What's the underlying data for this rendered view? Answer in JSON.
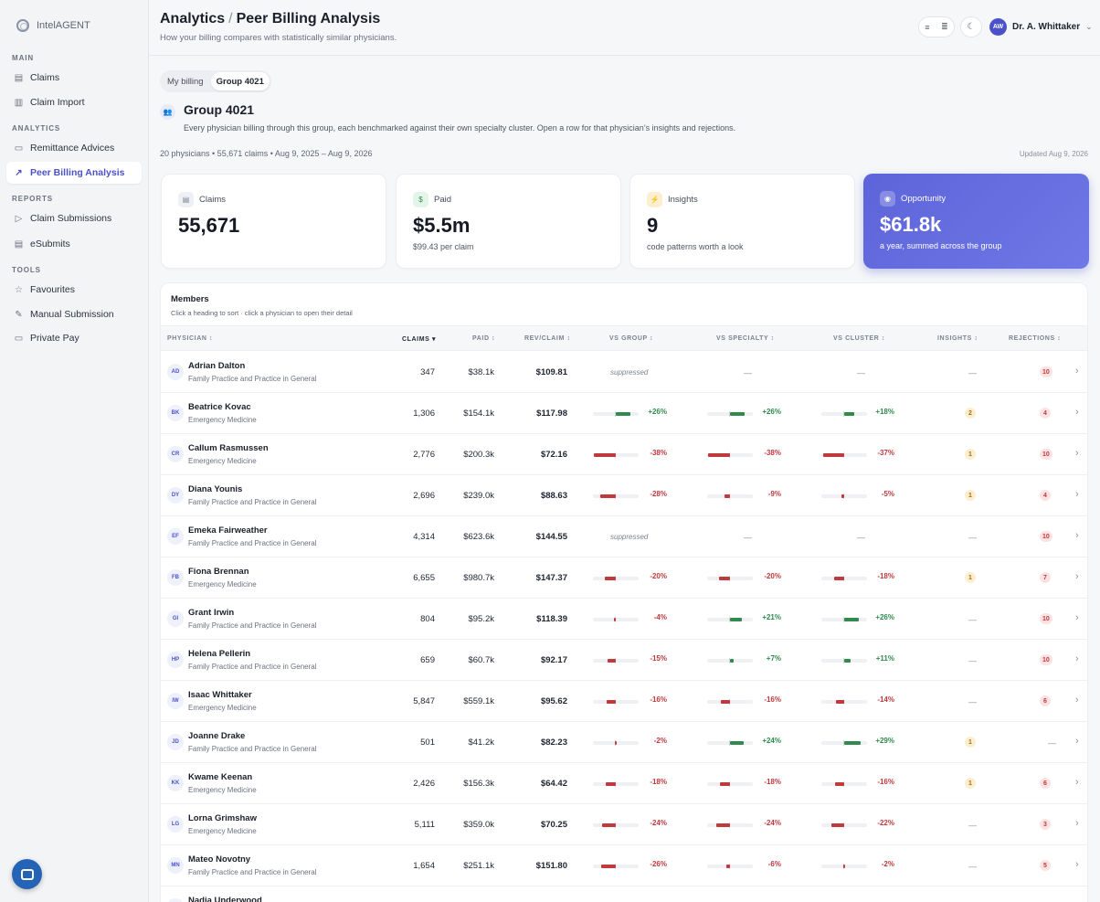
{
  "app": {
    "brand": "IntelAGENT"
  },
  "sidebar": {
    "sections": [
      {
        "label": "MAIN",
        "items": [
          {
            "label": "Claims",
            "icon": "document-icon"
          },
          {
            "label": "Claim Import",
            "icon": "import-icon"
          }
        ]
      },
      {
        "label": "ANALYTICS",
        "items": [
          {
            "label": "Remittance Advices",
            "icon": "remittance-icon"
          },
          {
            "label": "Peer Billing Analysis",
            "icon": "trend-icon",
            "active": true
          }
        ]
      },
      {
        "label": "REPORTS",
        "items": [
          {
            "label": "Claim Submissions",
            "icon": "send-icon"
          },
          {
            "label": "eSubmits",
            "icon": "file-icon"
          }
        ]
      },
      {
        "label": "TOOLS",
        "items": [
          {
            "label": "Favourites",
            "icon": "star-icon"
          },
          {
            "label": "Manual Submission",
            "icon": "edit-icon"
          },
          {
            "label": "Private Pay",
            "icon": "card-icon"
          }
        ]
      }
    ]
  },
  "header": {
    "crumb_parent": "Analytics",
    "crumb_sep": "/",
    "crumb_current": "Peer Billing Analysis",
    "subtitle": "How your billing compares with statistically similar physicians.",
    "user_initials": "AW",
    "user_name": "Dr. A. Whittaker"
  },
  "tabs": [
    {
      "label": "My billing",
      "active": false
    },
    {
      "label": "Group 4021",
      "active": true
    }
  ],
  "group": {
    "title": "Group 4021",
    "description": "Every physician billing through this group, each benchmarked against their own specialty cluster. Open a row for that physician’s insights and rejections.",
    "summary": "20 physicians • 55,671 claims • Aug 9, 2025 – Aug 9, 2026",
    "updated": "Updated Aug 9, 2026"
  },
  "cards": [
    {
      "label": "Claims",
      "value": "55,671",
      "note": ""
    },
    {
      "label": "Paid",
      "value": "$5.5m",
      "note": "$99.43 per claim"
    },
    {
      "label": "Insights",
      "value": "9",
      "note": "code patterns worth a look"
    },
    {
      "label": "Opportunity",
      "value": "$61.8k",
      "note": "a year, summed across the group"
    }
  ],
  "colors": {
    "accent": "#4b52c9",
    "negative": "#c0393d",
    "positive": "#2f8a4b",
    "opportunity": "#5d64d9"
  },
  "table": {
    "title": "Members",
    "subtitle": "Click a heading to sort · click a physician to open their detail",
    "columns": {
      "physician": "PHYSICIAN ↕",
      "claims": "CLAIMS ▾",
      "paid": "PAID ↕",
      "rev": "REV/CLAIM ↕",
      "vs_group": "VS GROUP ↕",
      "vs_specialty": "VS SPECIALTY ↕",
      "vs_cluster": "VS CLUSTER ↕",
      "insights": "INSIGHTS ↕",
      "rejections": "REJECTIONS ↕"
    },
    "rows": [
      {
        "initials": "AD",
        "name": "Adrian Dalton",
        "specialty": "Family Practice and Practice in General",
        "claims": "347",
        "paid": "$38.1k",
        "rev": "$109.81",
        "vs_group": null,
        "vs_specialty": null,
        "vs_cluster": null,
        "suppressed": "suppressed",
        "insights": null,
        "rejections": "10"
      },
      {
        "initials": "BK",
        "name": "Beatrice Kovac",
        "specialty": "Emergency Medicine",
        "claims": "1,306",
        "paid": "$154.1k",
        "rev": "$117.98",
        "vs_group": "+26%",
        "vs_specialty": "+26%",
        "vs_cluster": "+18%",
        "insights": "2",
        "rejections": "4"
      },
      {
        "initials": "CR",
        "name": "Callum Rasmussen",
        "specialty": "Emergency Medicine",
        "claims": "2,776",
        "paid": "$200.3k",
        "rev": "$72.16",
        "vs_group": "-38%",
        "vs_specialty": "-38%",
        "vs_cluster": "-37%",
        "insights": "1",
        "rejections": "10"
      },
      {
        "initials": "DY",
        "name": "Diana Younis",
        "specialty": "Family Practice and Practice in General",
        "claims": "2,696",
        "paid": "$239.0k",
        "rev": "$88.63",
        "vs_group": "-28%",
        "vs_specialty": "-9%",
        "vs_cluster": "-5%",
        "insights": "1",
        "rejections": "4"
      },
      {
        "initials": "EF",
        "name": "Emeka Fairweather",
        "specialty": "Family Practice and Practice in General",
        "claims": "4,314",
        "paid": "$623.6k",
        "rev": "$144.55",
        "vs_group": null,
        "vs_specialty": null,
        "vs_cluster": null,
        "suppressed": "suppressed",
        "insights": null,
        "rejections": "10"
      },
      {
        "initials": "FB",
        "name": "Fiona Brennan",
        "specialty": "Emergency Medicine",
        "claims": "6,655",
        "paid": "$980.7k",
        "rev": "$147.37",
        "vs_group": "-20%",
        "vs_specialty": "-20%",
        "vs_cluster": "-18%",
        "insights": "1",
        "rejections": "7"
      },
      {
        "initials": "GI",
        "name": "Grant Irwin",
        "specialty": "Family Practice and Practice in General",
        "claims": "804",
        "paid": "$95.2k",
        "rev": "$118.39",
        "vs_group": "-4%",
        "vs_specialty": "+21%",
        "vs_cluster": "+26%",
        "insights": null,
        "rejections": "10"
      },
      {
        "initials": "HP",
        "name": "Helena Pellerin",
        "specialty": "Family Practice and Practice in General",
        "claims": "659",
        "paid": "$60.7k",
        "rev": "$92.17",
        "vs_group": "-15%",
        "vs_specialty": "+7%",
        "vs_cluster": "+11%",
        "insights": null,
        "rejections": "10"
      },
      {
        "initials": "IW",
        "name": "Isaac Whittaker",
        "specialty": "Emergency Medicine",
        "claims": "5,847",
        "paid": "$559.1k",
        "rev": "$95.62",
        "vs_group": "-16%",
        "vs_specialty": "-16%",
        "vs_cluster": "-14%",
        "insights": null,
        "rejections": "6"
      },
      {
        "initials": "JD",
        "name": "Joanne Drake",
        "specialty": "Family Practice and Practice in General",
        "claims": "501",
        "paid": "$41.2k",
        "rev": "$82.23",
        "vs_group": "-2%",
        "vs_specialty": "+24%",
        "vs_cluster": "+29%",
        "insights": "1",
        "rejections": null
      },
      {
        "initials": "KK",
        "name": "Kwame Keenan",
        "specialty": "Emergency Medicine",
        "claims": "2,426",
        "paid": "$156.3k",
        "rev": "$64.42",
        "vs_group": "-18%",
        "vs_specialty": "-18%",
        "vs_cluster": "-16%",
        "insights": "1",
        "rejections": "6"
      },
      {
        "initials": "LG",
        "name": "Lorna Grimshaw",
        "specialty": "Emergency Medicine",
        "claims": "5,111",
        "paid": "$359.0k",
        "rev": "$70.25",
        "vs_group": "-24%",
        "vs_specialty": "-24%",
        "vs_cluster": "-22%",
        "insights": null,
        "rejections": "3"
      },
      {
        "initials": "MN",
        "name": "Mateo Novotny",
        "specialty": "Family Practice and Practice in General",
        "claims": "1,654",
        "paid": "$251.1k",
        "rev": "$151.80",
        "vs_group": "-26%",
        "vs_specialty": "-6%",
        "vs_cluster": "-2%",
        "insights": null,
        "rejections": "5"
      },
      {
        "initials": "NU",
        "name": "Nadia Underwood",
        "specialty": "",
        "claims": "",
        "paid": "",
        "rev": "",
        "vs_group": null,
        "vs_specialty": null,
        "vs_cluster": null,
        "insights": null,
        "rejections": null
      }
    ]
  }
}
